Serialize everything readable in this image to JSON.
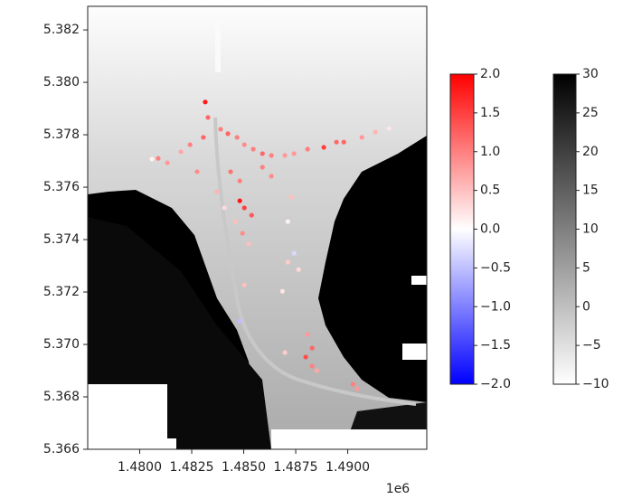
{
  "chart_data": {
    "type": "scatter",
    "xlim": [
      1.4775,
      1.4938
    ],
    "ylim": [
      5.366,
      5.3829
    ],
    "xticks": [
      {
        "value": 1.48,
        "label": "1.4800"
      },
      1.4825,
      {
        "value": 1.485,
        "label": "1.4850"
      },
      1.4875,
      {
        "value": 1.49,
        "label": "1.4900"
      }
    ],
    "yticks": [
      5.382,
      {
        "value": 5.38,
        "label": "5.380"
      },
      5.378,
      5.376,
      5.374,
      5.372,
      {
        "value": 5.37,
        "label": "5.370"
      },
      5.368,
      5.366
    ],
    "x_offset": "1e6",
    "x": [
      1.48315,
      1.48328,
      1.48389,
      1.48424,
      1.48468,
      1.48503,
      1.48546,
      1.4859,
      1.48633,
      1.48698,
      1.48742,
      1.48807,
      1.48885,
      1.48946,
      1.48981,
      1.49068,
      1.49133,
      1.49199,
      1.48242,
      1.48198,
      1.48276,
      1.48089,
      1.48133,
      1.48059,
      1.48481,
      1.48503,
      1.48538,
      1.48459,
      1.48494,
      1.48524,
      1.48407,
      1.48372,
      1.48729,
      1.48712,
      1.48742,
      1.48712,
      1.48764,
      1.48686,
      1.48503,
      1.48481,
      1.48807,
      1.48829,
      1.48798,
      1.48829,
      1.48851,
      1.49025,
      1.49046,
      1.48698,
      1.48306,
      1.4859,
      1.48633,
      1.48437,
      1.48481
    ],
    "y": [
      5.37925,
      5.37866,
      5.37821,
      5.37804,
      5.3779,
      5.37762,
      5.37745,
      5.37728,
      5.37721,
      5.37721,
      5.37728,
      5.37745,
      5.37752,
      5.37772,
      5.37772,
      5.3779,
      5.3781,
      5.37824,
      5.37762,
      5.37735,
      5.37659,
      5.3771,
      5.37693,
      5.37707,
      5.37548,
      5.37521,
      5.37493,
      5.37469,
      5.37424,
      5.37383,
      5.37521,
      5.37583,
      5.37562,
      5.37469,
      5.37348,
      5.37314,
      5.37286,
      5.37203,
      5.37227,
      5.37089,
      5.37038,
      5.36986,
      5.36952,
      5.36917,
      5.369,
      5.36848,
      5.36831,
      5.36969,
      5.3779,
      5.37676,
      5.37642,
      5.37659,
      5.37624
    ],
    "values": [
      1.8,
      1.2,
      1.0,
      1.2,
      1.0,
      0.9,
      1.0,
      1.2,
      1.0,
      0.8,
      0.8,
      1.0,
      1.5,
      1.2,
      1.2,
      0.8,
      0.6,
      0.2,
      1.0,
      0.7,
      0.9,
      1.0,
      0.8,
      0.1,
      1.8,
      1.5,
      1.3,
      0.5,
      0.9,
      0.5,
      0.3,
      0.6,
      0.5,
      0.1,
      -0.3,
      0.4,
      0.3,
      0.2,
      0.5,
      -0.5,
      0.8,
      1.2,
      1.4,
      1.0,
      0.7,
      1.0,
      0.8,
      0.4,
      1.2,
      1.0,
      0.9,
      1.1,
      1.0
    ],
    "colorbars": [
      {
        "lim": [
          -2,
          2
        ],
        "ticks": [
          {
            "value": 2,
            "label": "2.0"
          },
          1.5,
          {
            "value": 1,
            "label": "1.0"
          },
          0.5,
          {
            "value": 0,
            "label": "0.0"
          },
          {
            "value": -0.5,
            "label": "−0.5"
          },
          {
            "value": -1,
            "label": "−1.0"
          },
          {
            "value": -1.5,
            "label": "−1.5"
          },
          {
            "value": -2,
            "label": "−2.0"
          }
        ]
      },
      {
        "lim": [
          -10,
          30
        ],
        "ticks": [
          30,
          25,
          20,
          15,
          10,
          5,
          0,
          {
            "value": -5,
            "label": "−5"
          },
          {
            "value": -10,
            "label": "−10"
          }
        ]
      }
    ]
  }
}
